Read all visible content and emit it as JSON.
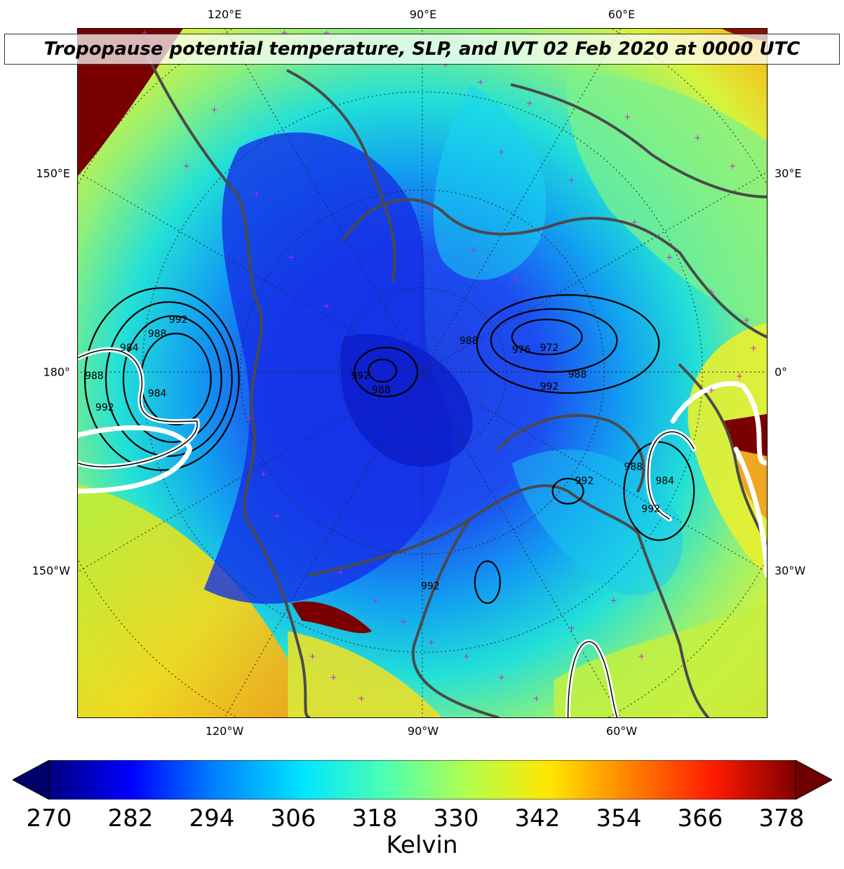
{
  "title": "Tropopause potential temperature, SLP, and IVT 02 Feb 2020 at 0000 UTC",
  "axes": {
    "top": [
      "120°E",
      "90°E",
      "60°E"
    ],
    "bottom": [
      "120°W",
      "90°W",
      "60°W"
    ],
    "left": [
      "150°E",
      "180°",
      "150°W"
    ],
    "right": [
      "30°E",
      "0°",
      "30°W"
    ]
  },
  "slp_contour_labels": [
    "988",
    "976",
    "972",
    "988",
    "992",
    "992",
    "988",
    "992",
    "988",
    "984",
    "992",
    "988",
    "984",
    "988",
    "992",
    "992",
    "984",
    "992"
  ],
  "colorbar": {
    "ticks": [
      "270",
      "282",
      "294",
      "306",
      "318",
      "330",
      "342",
      "354",
      "366",
      "378"
    ],
    "label": "Kelvin",
    "colors": [
      "#000080",
      "#0000ff",
      "#0080ff",
      "#00e5ff",
      "#4dffb2",
      "#b2ff4d",
      "#ffe600",
      "#ff8000",
      "#ff1a00",
      "#800000"
    ]
  }
}
